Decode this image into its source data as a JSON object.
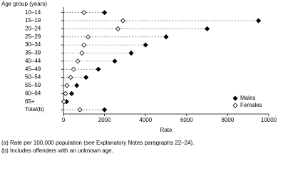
{
  "chart_data": {
    "type": "dotplot",
    "y_label": "Age group (years)",
    "x_label": "Rate",
    "categories": [
      "10–14",
      "15–19",
      "20–24",
      "25–29",
      "30–34",
      "35–39",
      "40–44",
      "45–49",
      "50–54",
      "55–59",
      "60–64",
      "65+",
      "Total(b)"
    ],
    "series": [
      {
        "name": "Males",
        "color": "#000000",
        "filled": true,
        "values": [
          2000,
          9500,
          7000,
          5000,
          4000,
          3300,
          2500,
          1700,
          1100,
          650,
          400,
          150,
          2000
        ]
      },
      {
        "name": "Females",
        "color": "#000000",
        "filled": false,
        "values": [
          1000,
          2900,
          2650,
          1200,
          1000,
          900,
          700,
          500,
          350,
          170,
          100,
          30,
          800
        ]
      }
    ],
    "xlim": [
      0,
      10000
    ],
    "xticks": [
      0,
      2000,
      4000,
      6000,
      8000,
      10000
    ],
    "legend": "lower-right",
    "notes": [
      "(a) Rate per 100,000 population (see Explanatory Notes paragraphs 22–24).",
      "(b) Includes offenders with an unknown age."
    ]
  }
}
